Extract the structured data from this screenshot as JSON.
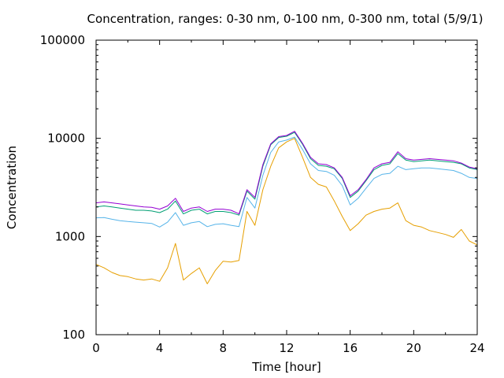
{
  "chart_data": {
    "type": "line",
    "title": "Concentration, ranges: 0-30 nm, 0-100 nm, 0-300 nm, total (5/9/1)",
    "xlabel": "Time [hour]",
    "ylabel": "Concentration",
    "xlim": [
      0,
      24
    ],
    "ylim": [
      100,
      100000
    ],
    "yscale": "log",
    "grid": false,
    "legend": "none",
    "xticks": [
      0,
      4,
      8,
      12,
      16,
      20,
      24
    ],
    "xtick_labels": [
      "0",
      "4",
      "8",
      "12",
      "16",
      "20",
      "24"
    ],
    "yticks": [
      100,
      1000,
      10000,
      100000
    ],
    "ytick_labels": [
      "100",
      "1000",
      "10000",
      "100000"
    ],
    "x": [
      0,
      0.5,
      1,
      1.5,
      2,
      2.5,
      3,
      3.5,
      4,
      4.5,
      5,
      5.5,
      6,
      6.5,
      7,
      7.5,
      8,
      8.5,
      9,
      9.5,
      10,
      10.5,
      11,
      11.5,
      12,
      12.5,
      13,
      13.5,
      14,
      14.5,
      15,
      15.5,
      16,
      16.5,
      17,
      17.5,
      18,
      18.5,
      19,
      19.5,
      20,
      20.5,
      21,
      21.5,
      22,
      22.5,
      23,
      23.5,
      24
    ],
    "series": [
      {
        "color": "#e69f00",
        "values": [
          520,
          480,
          430,
          400,
          390,
          370,
          360,
          370,
          350,
          480,
          850,
          360,
          420,
          480,
          330,
          450,
          560,
          550,
          570,
          1800,
          1300,
          3000,
          5200,
          8000,
          9200,
          10000,
          6400,
          4000,
          3400,
          3200,
          2300,
          1600,
          1150,
          1350,
          1650,
          1800,
          1900,
          1950,
          2200,
          1450,
          1300,
          1250,
          1150,
          1100,
          1050,
          980,
          1180,
          900,
          820
        ]
      },
      {
        "color": "#56b4e9",
        "values": [
          1550,
          1560,
          1500,
          1450,
          1420,
          1400,
          1380,
          1360,
          1250,
          1400,
          1750,
          1300,
          1380,
          1420,
          1260,
          1330,
          1350,
          1300,
          1260,
          2500,
          1950,
          4200,
          7200,
          9200,
          9600,
          10300,
          7700,
          5500,
          4700,
          4600,
          4200,
          3300,
          2100,
          2450,
          3100,
          3900,
          4300,
          4400,
          5200,
          4800,
          4900,
          5000,
          5000,
          4900,
          4800,
          4700,
          4400,
          4000,
          3900
        ]
      },
      {
        "color": "#009e73",
        "values": [
          2000,
          2050,
          2000,
          1950,
          1900,
          1850,
          1850,
          1820,
          1750,
          1900,
          2300,
          1700,
          1850,
          1900,
          1700,
          1800,
          1800,
          1750,
          1650,
          2900,
          2400,
          5200,
          8600,
          10200,
          10500,
          11500,
          8700,
          6200,
          5300,
          5200,
          4900,
          3900,
          2500,
          2900,
          3700,
          4800,
          5300,
          5500,
          7000,
          6000,
          5800,
          5900,
          6000,
          5900,
          5800,
          5700,
          5500,
          5000,
          4800
        ]
      },
      {
        "color": "#9400d3",
        "values": [
          2200,
          2250,
          2200,
          2150,
          2100,
          2050,
          2000,
          1980,
          1900,
          2050,
          2450,
          1800,
          1950,
          2000,
          1800,
          1900,
          1900,
          1850,
          1700,
          3000,
          2500,
          5400,
          8800,
          10400,
          10700,
          11800,
          8900,
          6400,
          5500,
          5400,
          5000,
          4000,
          2600,
          3000,
          3800,
          5000,
          5500,
          5700,
          7300,
          6200,
          6000,
          6100,
          6200,
          6100,
          6000,
          5900,
          5600,
          5100,
          4900
        ]
      }
    ]
  }
}
